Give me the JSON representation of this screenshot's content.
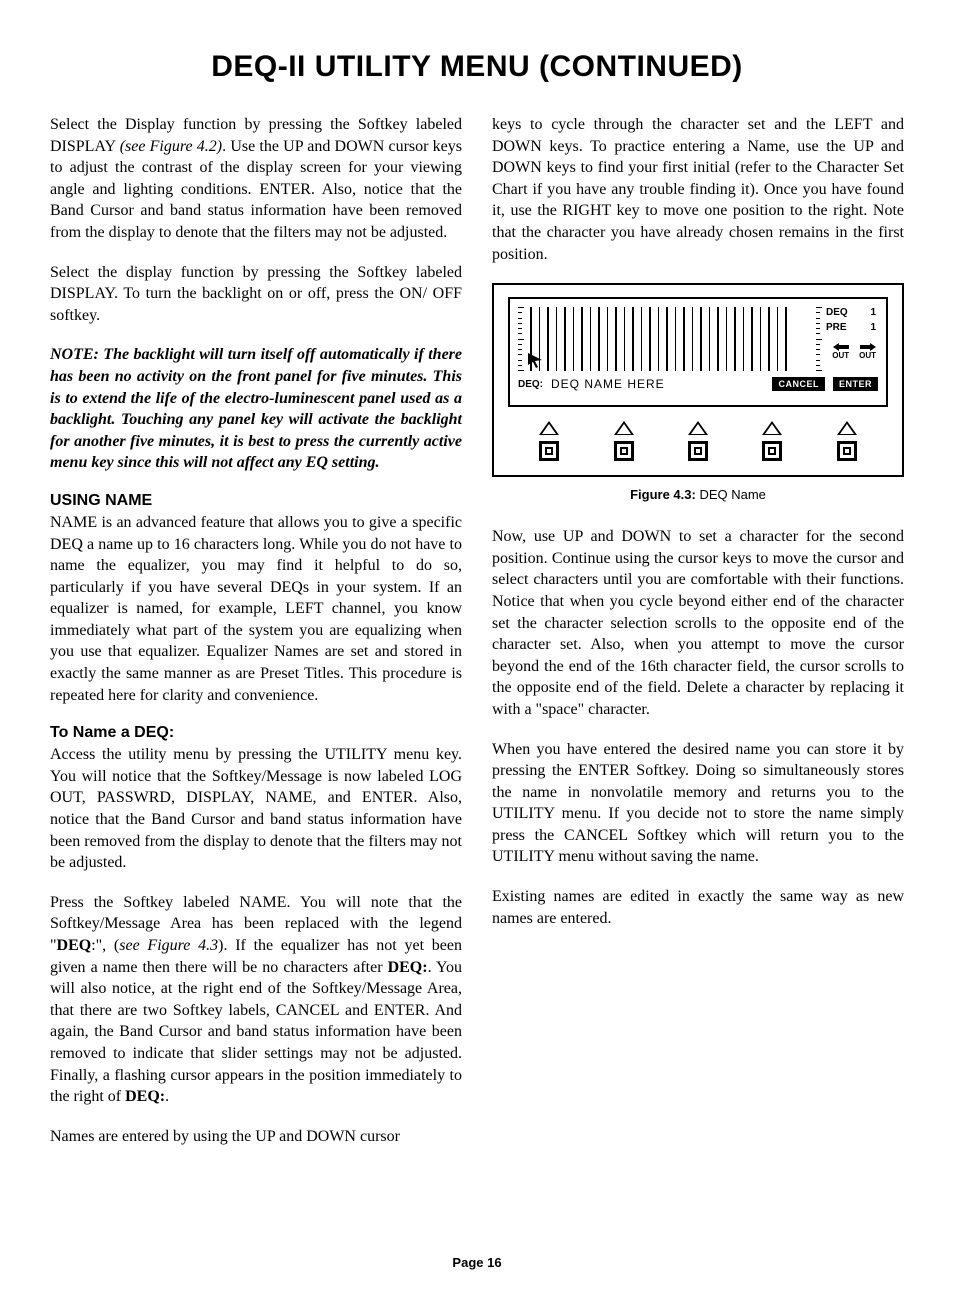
{
  "title": "DEQ-II UTILITY MENU (CONTINUED)",
  "left": {
    "p1a": "Select the Display function by pressing the Softkey labeled DISPLAY ",
    "p1b": "(see Figure 4.2)",
    "p1c": ". Use the UP and DOWN cursor keys to adjust the contrast of the display screen for your viewing angle and lighting conditions. ENTER.  Also, notice that the Band Cursor and band status information have been removed from the display to denote that the filters may not be adjusted.",
    "p2": "Select the display function by pressing the Softkey labeled DISPLAY. To turn the backlight on or off, press the ON/ OFF softkey.",
    "note": "NOTE: The backlight will turn itself off automatically if there has been no activity on the front panel for five minutes. This is to extend the life of the electro-luminescent  panel used as a backlight. Touching any panel key will activate the backlight for another five minutes, it is best to press the currently active menu key since this will not affect any EQ setting.",
    "h2a": "USING NAME",
    "p3": "NAME is an advanced feature that allows you to give a specific DEQ a name up to 16 characters long.  While you do not have to name the equalizer, you may find it helpful to do so, particularly if you have several DEQs in your system.  If an equalizer is named, for example, LEFT channel, you know immediately what part of the system you are equalizing when you use that equalizer. Equalizer Names are set and stored in exactly the same manner as are Preset Titles.  This procedure is repeated here for clarity and convenience.",
    "h2b": "To Name a DEQ:",
    "p4": "Access the utility  menu by pressing the UTILITY menu key. You will notice that the Softkey/Message is now labeled LOG OUT, PASSWRD, DISPLAY, NAME, and ENTER.  Also, notice that the Band Cursor and band status information have been removed from the display to denote that the filters may not be adjusted.",
    "p5a": "Press the Softkey labeled NAME. You will note that the Softkey/Message Area has been replaced with the legend \"",
    "p5b": "DEQ",
    "p5c": ":\", (",
    "p5d": "see Figure 4.3",
    "p5e": ").  If the equalizer has not yet been given a name then there will be no characters after ",
    "p5f": "DEQ:",
    "p5g": ".  You will also notice, at the right end of the Softkey/Message Area, that there are two Softkey labels, CANCEL and ENTER.  And again, the Band Cursor and band status information have been removed to indicate that slider settings may not be adjusted.  Finally, a flashing cursor appears in the position immediately to the right of ",
    "p5h": "DEQ:",
    "p5i": ".",
    "p6": "Names are entered by using the UP and DOWN cursor"
  },
  "right": {
    "p1": "keys to cycle through the character set and the LEFT and DOWN keys.  To practice entering a Name, use the UP and DOWN keys to find your first initial (refer to the Character Set Chart if you have any trouble finding it).  Once you have found it, use the RIGHT key to move one position to the right.  Note that the character you have already chosen remains in the first position.",
    "p2": "Now, use UP and DOWN to set a character for the second position.  Continue using the cursor keys to move the cursor and select characters until you are comfortable with their functions.  Notice that when you cycle beyond either end of the character set the character selection scrolls to the opposite end of the character set.  Also, when you attempt to move the cursor beyond the end of the 16th character field, the cursor scrolls to the opposite end of the field. Delete a character by replacing it with a \"space\" character.",
    "p3": "When you have entered the desired name you can store it by pressing the ENTER Softkey. Doing so simultaneously stores the name in nonvolatile memory and returns you to the UTILITY menu.  If you decide not to store the name simply press the CANCEL Softkey which will return you to the UTILITY menu without saving the name.",
    "p4": "Existing names are edited in exactly the same way as new names are entered."
  },
  "figure": {
    "deq_label": "DEQ",
    "deq_val": "1",
    "pre_label": "PRE",
    "pre_val": "1",
    "out_label": "OUT",
    "msg_label": "DEQ:",
    "msg_value": "DEQ NAME HERE",
    "cancel": "CANCEL",
    "enter": "ENTER",
    "caption_b": "Figure 4.3:",
    "caption_t": " DEQ Name",
    "bar_count": 31,
    "tick_count": 13
  },
  "page": "Page 16"
}
